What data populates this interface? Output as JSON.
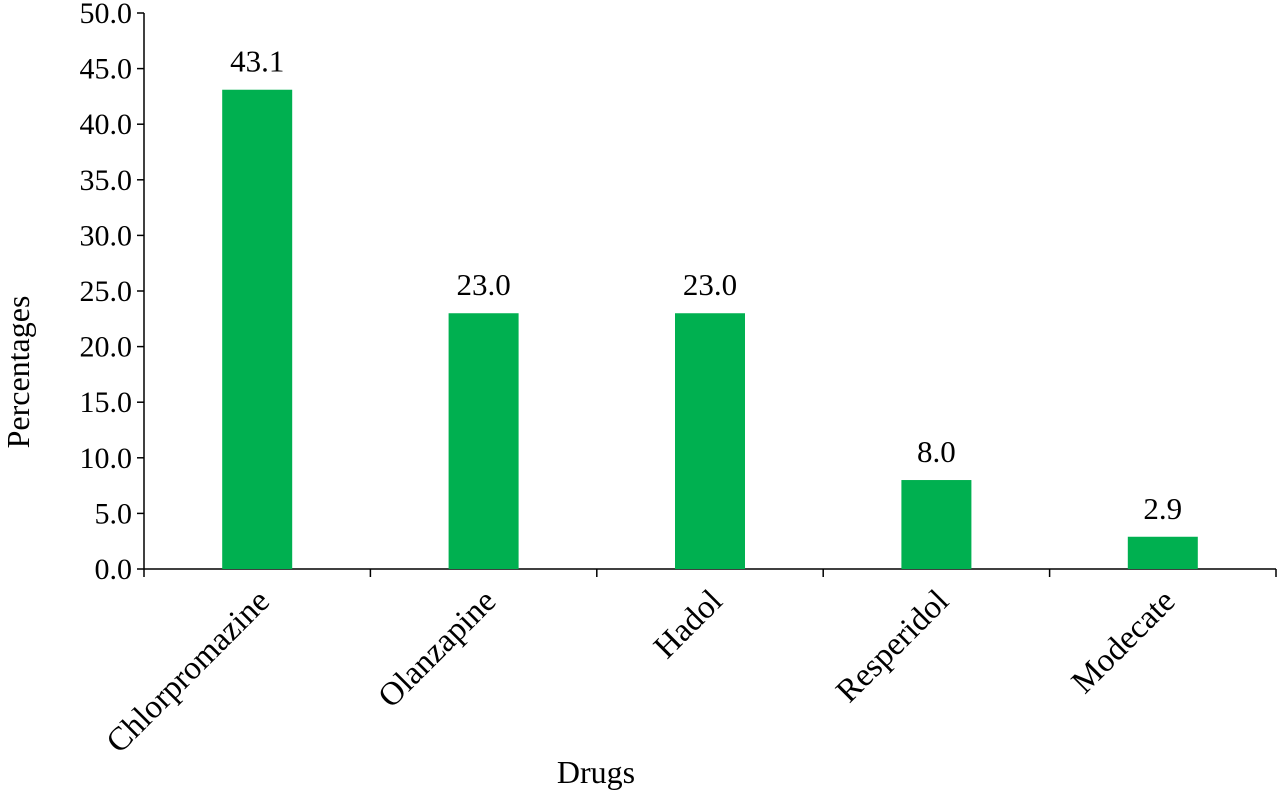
{
  "chart_data": {
    "type": "bar",
    "title": "",
    "xlabel": "Drugs",
    "ylabel": "Percentages",
    "categories": [
      "Chlorpromazine",
      "Olanzapine",
      "Hadol",
      "Resperidol",
      "Modecate"
    ],
    "values": [
      43.1,
      23.0,
      23.0,
      8.0,
      2.9
    ],
    "data_labels": [
      "43.1",
      "23.0",
      "23.0",
      "8.0",
      "2.9"
    ],
    "ylim": [
      0,
      50
    ],
    "yticks": [
      0,
      5,
      10,
      15,
      20,
      25,
      30,
      35,
      40,
      45,
      50
    ],
    "ytick_labels": [
      "0.0",
      "5.0",
      "10.0",
      "15.0",
      "20.0",
      "25.0",
      "30.0",
      "35.0",
      "40.0",
      "45.0",
      "50.0"
    ],
    "bar_color": "#00b050",
    "grid": false,
    "legend": "none"
  }
}
